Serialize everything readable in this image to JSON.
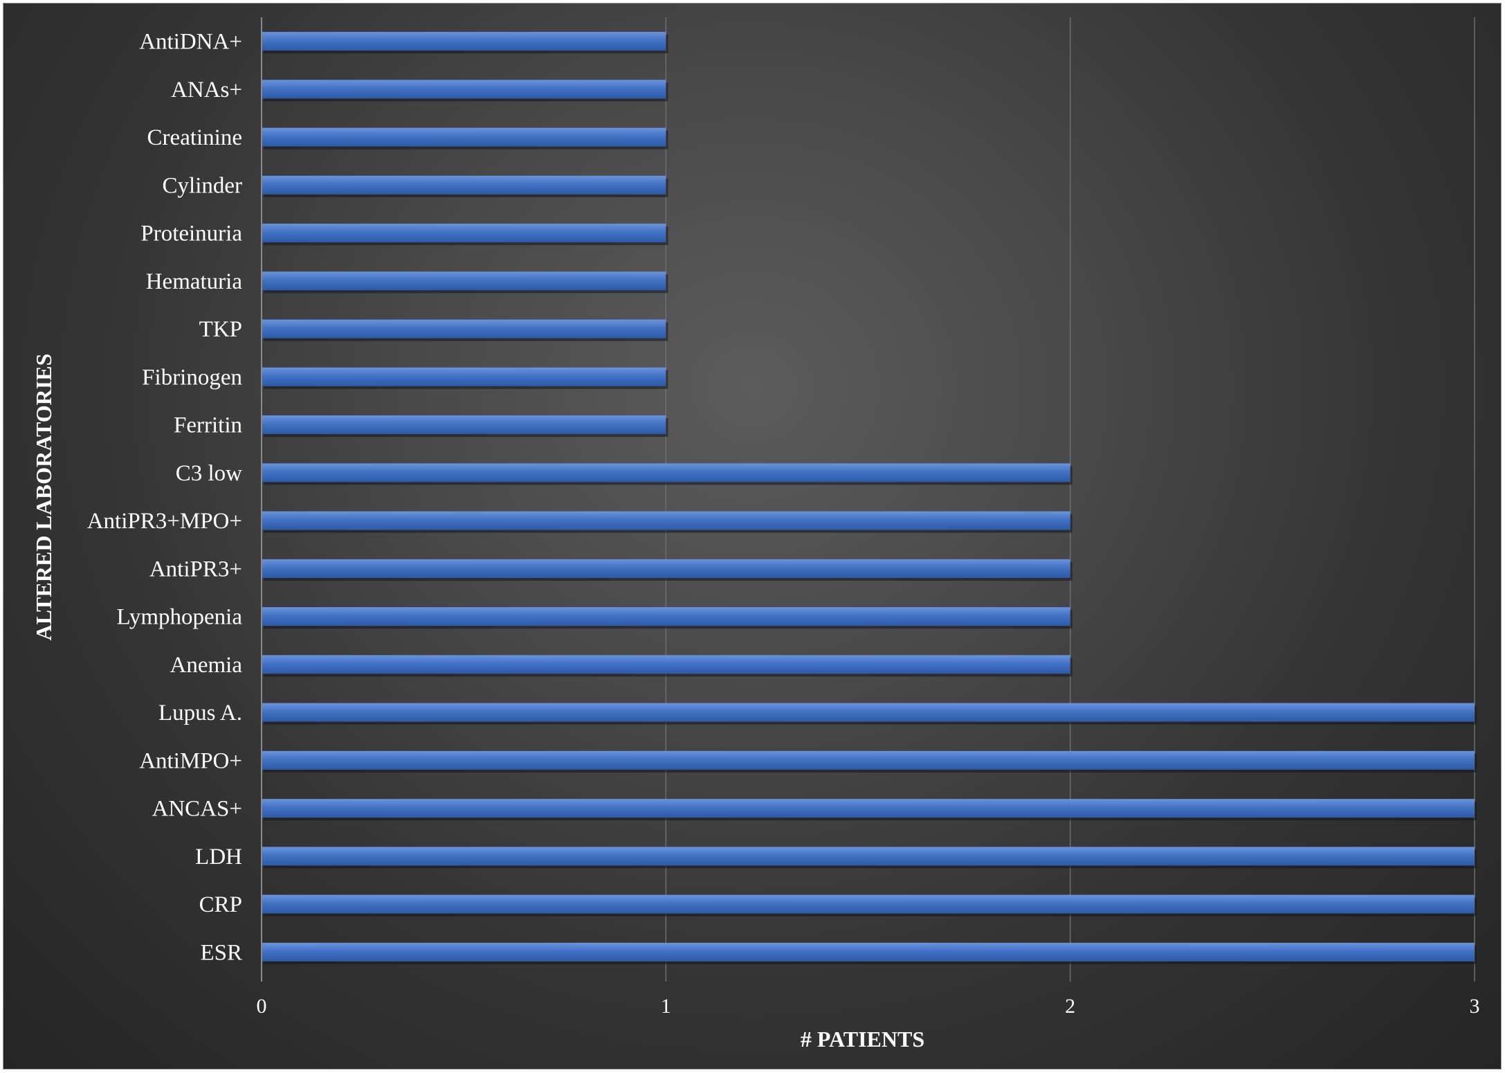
{
  "chart_data": {
    "type": "bar",
    "orientation": "horizontal",
    "xlabel": "# PATIENTS",
    "ylabel": "ALTERED LABORATORIES",
    "xlim": [
      0,
      3
    ],
    "xticks": [
      "0",
      "1",
      "2",
      "3"
    ],
    "grid": true,
    "legend": "none",
    "categories": [
      "ESR",
      "CRP",
      "LDH",
      "ANCAS+",
      "AntiMPO+",
      "Lupus A.",
      "Anemia",
      "Lymphopenia",
      "AntiPR3+",
      "AntiPR3+MPO+",
      "C3 low",
      "Ferritin",
      "Fibrinogen",
      "TKP",
      "Hematuria",
      "Proteinuria",
      "Cylinder",
      "Creatinine",
      "ANAs+",
      "AntiDNA+"
    ],
    "values": [
      3,
      3,
      3,
      3,
      3,
      3,
      2,
      2,
      2,
      2,
      2,
      1,
      1,
      1,
      1,
      1,
      1,
      1,
      1,
      1
    ],
    "colors": {
      "bar": "#4472c4",
      "bar_highlight": "#6a93dd",
      "bar_shadow": "#1f3f7a",
      "text": "#ffffff",
      "grid": "#6e6e6e"
    }
  }
}
